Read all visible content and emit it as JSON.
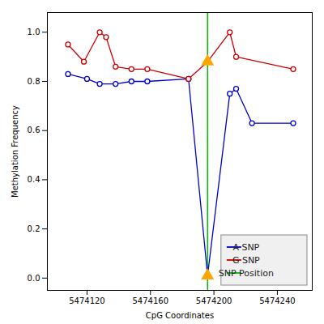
{
  "chart_data": {
    "type": "line",
    "xlabel": "CpG Coordinates",
    "ylabel": "Methylation Frequency",
    "series": [
      {
        "name": "A SNP",
        "color": "#0000CC",
        "marker": "circle",
        "line_style": "solid",
        "x": [
          5474108,
          5474120,
          5474128,
          5474138,
          5474148,
          5474158,
          5474184,
          5474196,
          5474210,
          5474214,
          5474224,
          5474250
        ],
        "values": [
          0.83,
          0.81,
          0.79,
          0.79,
          0.8,
          0.8,
          0.81,
          0.01,
          0.75,
          0.77,
          0.63,
          0.63
        ]
      },
      {
        "name": "G SNP",
        "color": "#CC0000",
        "marker": "circle",
        "line_style": "solid",
        "x": [
          5474108,
          5474118,
          5474128,
          5474132,
          5474138,
          5474148,
          5474158,
          5474184,
          5474196,
          5474210,
          5474214,
          5474250
        ],
        "values": [
          0.95,
          0.88,
          1.0,
          0.98,
          0.86,
          0.85,
          0.85,
          0.81,
          0.88,
          1.0,
          0.9,
          0.85
        ]
      },
      {
        "name": "SNP Position",
        "type": "vline",
        "color": "#00BB00",
        "line_style": "solid",
        "x": [
          5474196
        ]
      },
      {
        "type": "scatter",
        "marker": "triangle",
        "color": "#FFA500",
        "x": [
          5474196,
          5474196
        ],
        "values": [
          0.88,
          0.01
        ]
      }
    ],
    "xlim": [
      5474095,
      5474262
    ],
    "ylim": [
      -0.05,
      1.08
    ],
    "xticks": [
      5474120,
      5474160,
      5474200,
      5474240
    ],
    "yticks": [
      {
        "value": 0.0,
        "label": "0.0"
      },
      0.2,
      0.4,
      0.6,
      0.8,
      {
        "value": 1.0,
        "label": "1.0"
      }
    ],
    "grid": false,
    "legend": "lower right"
  }
}
